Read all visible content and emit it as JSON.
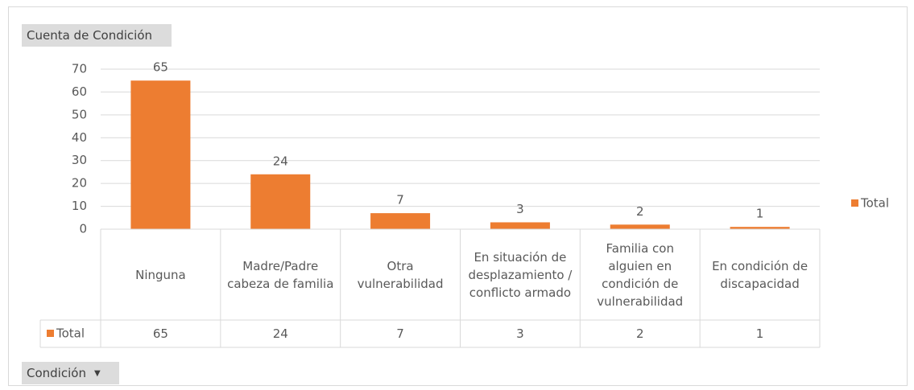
{
  "chart_data": {
    "type": "bar",
    "title": "Cuenta de Condición",
    "field_button": "Condición",
    "categories": [
      "Ninguna",
      "Madre/Padre cabeza de familia",
      "Otra vulnerabilidad",
      "En situación de desplazamiento / conflicto armado",
      "Familia con alguien en condición de vulnerabilidad",
      "En condición de discapacidad"
    ],
    "series": [
      {
        "name": "Total",
        "color": "#ed7d31",
        "values": [
          65,
          24,
          7,
          3,
          2,
          1
        ]
      }
    ],
    "ylim": [
      0,
      70
    ],
    "yticks": [
      0,
      10,
      20,
      30,
      40,
      50,
      60,
      70
    ],
    "grid": true,
    "legend": "right",
    "data_table": true
  }
}
